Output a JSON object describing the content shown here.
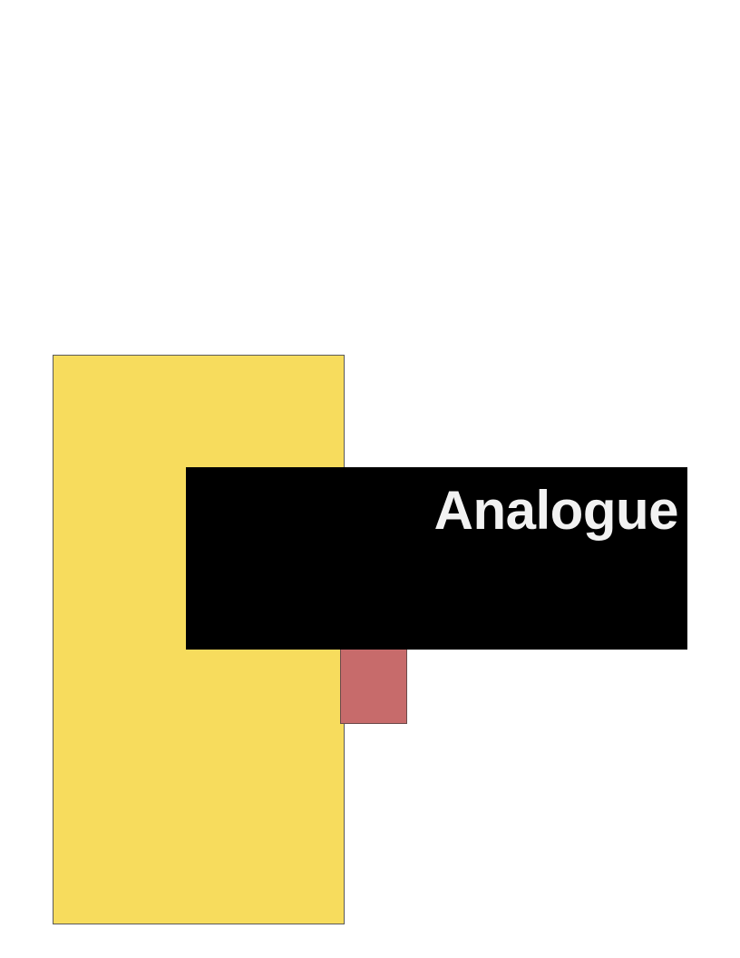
{
  "document": {
    "title": "Analogue"
  },
  "colors": {
    "page_background": "#ffffff",
    "yellow_block": "#f7dc5d",
    "rose_block": "#c76b6b",
    "title_band": "#000000",
    "title_text": "#f2f2f2"
  }
}
